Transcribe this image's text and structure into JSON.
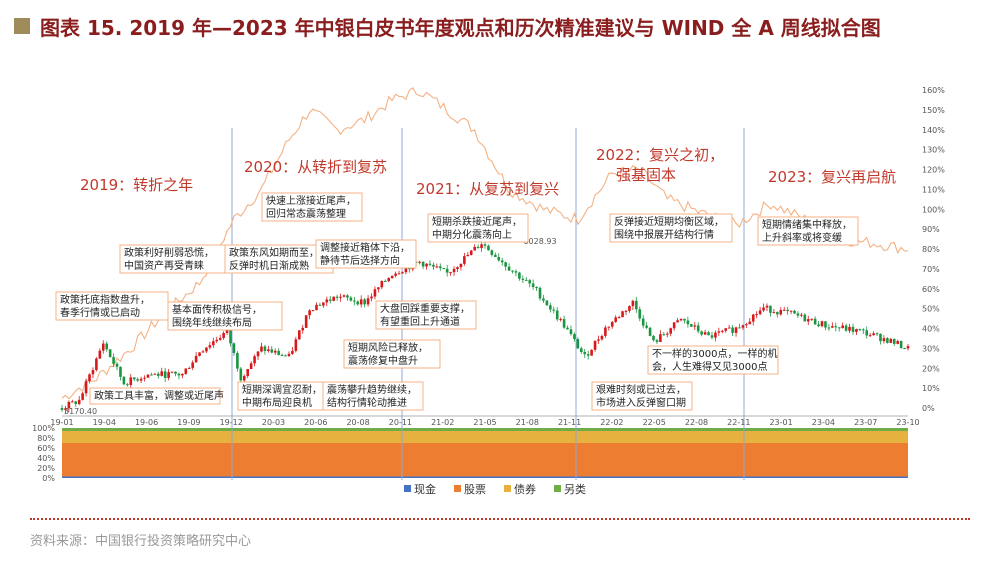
{
  "title": "图表 15. 2019 年—2023 年中银白皮书年度观点和历次精准建议与 WIND 全 A 周线拟合图",
  "source": "资料来源：中国银行投资策略研究中心",
  "colors": {
    "title": "#8a1e1e",
    "phase": "#c0392b",
    "candle_up": "#d7191c",
    "candle_down": "#1a9641",
    "line": "#f4b183",
    "cash": "#4472c4",
    "stock": "#ed7d31",
    "bond": "#e6b13e",
    "other": "#70ad47"
  },
  "chart_data": [
    {
      "type": "candlestick",
      "series_name": "",
      "x_ticks": [
        "19-01",
        "19-04",
        "19-06",
        "19-09",
        "19-12",
        "20-03",
        "20-06",
        "20-08",
        "20-11",
        "21-02",
        "21-05",
        "21-08",
        "21-11",
        "22-02",
        "22-05",
        "22-08",
        "22-11",
        "23-01",
        "23-04",
        "23-07",
        "23-10"
      ],
      "low_label": "3170.40",
      "high_label": "6028.93",
      "index_anchors": [
        [
          0,
          3170
        ],
        [
          5,
          3300
        ],
        [
          12,
          4300
        ],
        [
          18,
          3600
        ],
        [
          25,
          3750
        ],
        [
          35,
          3750
        ],
        [
          40,
          4150
        ],
        [
          48,
          4500
        ],
        [
          52,
          3700
        ],
        [
          58,
          4200
        ],
        [
          66,
          4050
        ],
        [
          72,
          4900
        ],
        [
          80,
          5100
        ],
        [
          88,
          5000
        ],
        [
          96,
          5500
        ],
        [
          104,
          5700
        ],
        [
          112,
          5500
        ],
        [
          122,
          6029
        ],
        [
          130,
          5600
        ],
        [
          138,
          5200
        ],
        [
          146,
          4600
        ],
        [
          152,
          4050
        ],
        [
          158,
          4550
        ],
        [
          166,
          5000
        ],
        [
          172,
          4300
        ],
        [
          180,
          4700
        ],
        [
          188,
          4400
        ],
        [
          196,
          4550
        ],
        [
          204,
          4900
        ],
        [
          212,
          4800
        ],
        [
          222,
          4600
        ],
        [
          232,
          4500
        ],
        [
          240,
          4350
        ],
        [
          246,
          4200
        ]
      ]
    },
    {
      "type": "line",
      "series_name": "",
      "y_axis": [
        "0%",
        "10%",
        "20%",
        "30%",
        "40%",
        "50%",
        "60%",
        "70%",
        "80%",
        "90%",
        "100%",
        "110%",
        "120%",
        "130%",
        "140%",
        "150%",
        "160%"
      ],
      "ylim": [
        0,
        160
      ],
      "pct_anchors": [
        [
          0,
          5
        ],
        [
          10,
          15
        ],
        [
          20,
          30
        ],
        [
          30,
          48
        ],
        [
          40,
          63
        ],
        [
          50,
          95
        ],
        [
          58,
          110
        ],
        [
          66,
          135
        ],
        [
          72,
          150
        ],
        [
          80,
          140
        ],
        [
          88,
          145
        ],
        [
          96,
          155
        ],
        [
          104,
          160
        ],
        [
          112,
          150
        ],
        [
          120,
          140
        ],
        [
          130,
          110
        ],
        [
          140,
          100
        ],
        [
          150,
          95
        ],
        [
          160,
          118
        ],
        [
          168,
          120
        ],
        [
          176,
          105
        ],
        [
          186,
          98
        ],
        [
          196,
          92
        ],
        [
          206,
          103
        ],
        [
          216,
          95
        ],
        [
          226,
          85
        ],
        [
          236,
          83
        ],
        [
          246,
          80
        ]
      ]
    },
    {
      "type": "stacked_area",
      "y_ticks": [
        "0%",
        "20%",
        "40%",
        "60%",
        "80%",
        "100%"
      ],
      "series": [
        {
          "name": "现金",
          "bounds": [
            0,
            3
          ]
        },
        {
          "name": "股票",
          "bounds": [
            3,
            70
          ]
        },
        {
          "name": "债券",
          "bounds": [
            70,
            94
          ]
        },
        {
          "name": "另类",
          "bounds": [
            94,
            100
          ]
        }
      ]
    }
  ],
  "phases": [
    {
      "label": "2019：转折之年"
    },
    {
      "label": "2020：从转折到复苏"
    },
    {
      "label": "2021：从复苏到复兴"
    },
    {
      "label": "2022：复兴之初，",
      "label2": "强基固本"
    },
    {
      "label": "2023：复兴再启航"
    }
  ],
  "annotations": [
    {
      "l1": "政策托底指数盘升，",
      "l2": "春季行情或已启动"
    },
    {
      "l1": "政策利好削弱恐慌，",
      "l2": "中国资产再受青睐"
    },
    {
      "l1": "政策工具丰富，调整或近尾声",
      "l2": ""
    },
    {
      "l1": "基本面传积极信号，",
      "l2": "围绕年线继续布局"
    },
    {
      "l1": "政策东风如期而至，",
      "l2": "反弹时机日渐成熟"
    },
    {
      "l1": "快速上涨接近尾声，",
      "l2": "回归常态震荡整理"
    },
    {
      "l1": "短期深调宜忍耐，",
      "l2": "中期布局迎良机"
    },
    {
      "l1": "调整接近箱体下沿，",
      "l2": "静待节后选择方向"
    },
    {
      "l1": "短期风险已释放，",
      "l2": "震荡修复中盘升"
    },
    {
      "l1": "震荡攀升趋势继续，",
      "l2": "结构行情轮动推进"
    },
    {
      "l1": "大盘回踩重要支撑，",
      "l2": "有望重回上升通道"
    },
    {
      "l1": "短期杀跌接近尾声，",
      "l2": "中期分化震荡向上"
    },
    {
      "l1": "反弹接近短期均衡区域，",
      "l2": "围绕中报展开结构行情"
    },
    {
      "l1": "不一样的3000点，一样的机",
      "l2": "会，人生难得又见3000点"
    },
    {
      "l1": "艰难时刻或已过去，",
      "l2": "市场进入反弹窗口期"
    },
    {
      "l1": "短期情绪集中释放，",
      "l2": "上升斜率或将变缓"
    }
  ],
  "legend": [
    {
      "name": "现金",
      "color": "#4472c4"
    },
    {
      "name": "股票",
      "color": "#ed7d31"
    },
    {
      "name": "债券",
      "color": "#e6b13e"
    },
    {
      "name": "另类",
      "color": "#70ad47"
    }
  ]
}
